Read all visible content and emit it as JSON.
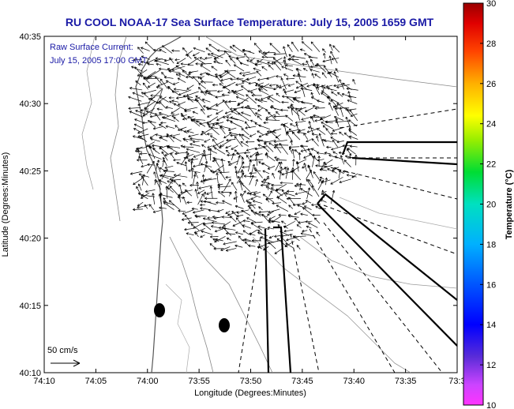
{
  "title": "RU COOL  NOAA-17  Sea Surface Temperature:  July 15, 2005 1659 GMT",
  "legend": {
    "line1": "Raw Surface Current:",
    "line2": "July 15, 2005 17:00 GMT"
  },
  "axes": {
    "xlabel": "Longitude (Degrees:Minutes)",
    "ylabel": "Latitude (Degrees:Minutes)",
    "xticks": [
      "74:10",
      "74:05",
      "74:00",
      "73:55",
      "73:50",
      "73:45",
      "73:40",
      "73:35",
      "73:3"
    ],
    "yticks": [
      "40:35",
      "40:30",
      "40:25",
      "40:20",
      "40:15",
      "40:10"
    ]
  },
  "scale_label": "50 cm/s",
  "colorbar": {
    "label": "Temperature (°C)",
    "ticks": [
      "30",
      "28",
      "26",
      "24",
      "22",
      "20",
      "18",
      "16",
      "14",
      "12",
      "10"
    ],
    "min": 10,
    "max": 30
  },
  "colors": {
    "title": "#1a1aa6",
    "land": "#ffffff",
    "water": "#ffffff",
    "vectors": "#000000"
  }
}
